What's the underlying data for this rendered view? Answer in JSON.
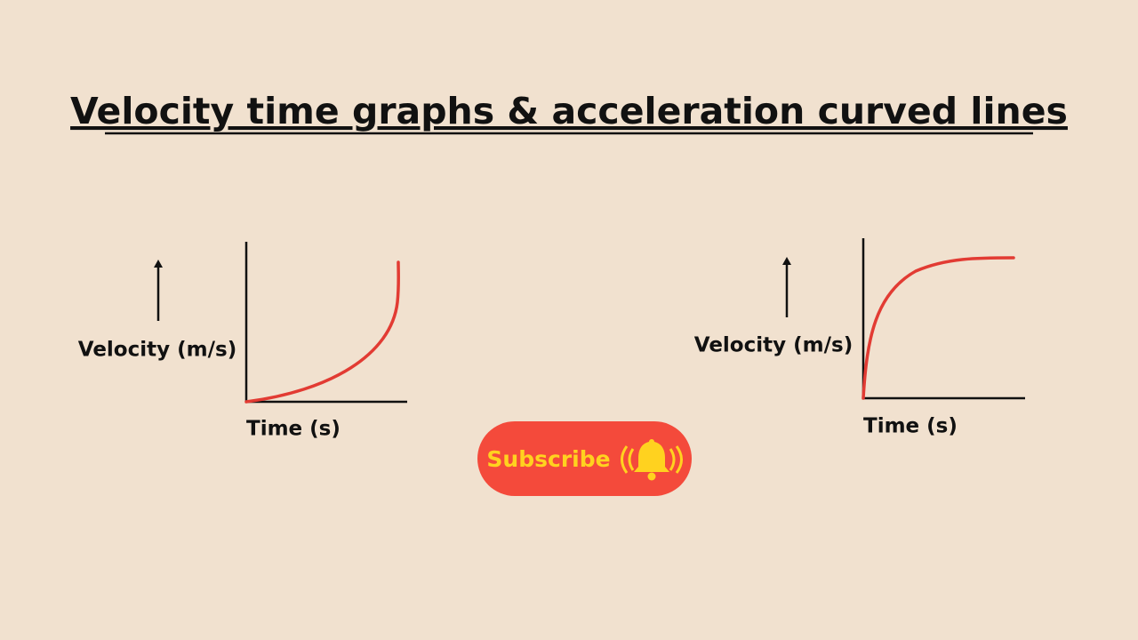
{
  "header": {
    "title": "Velocity time graphs & acceleration curved lines"
  },
  "graphs": [
    {
      "y_label": "Velocity (m/s)",
      "x_label": "Time (s)"
    },
    {
      "y_label": "Velocity (m/s)",
      "x_label": "Time (s)"
    }
  ],
  "button": {
    "label": "Subscribe"
  }
}
